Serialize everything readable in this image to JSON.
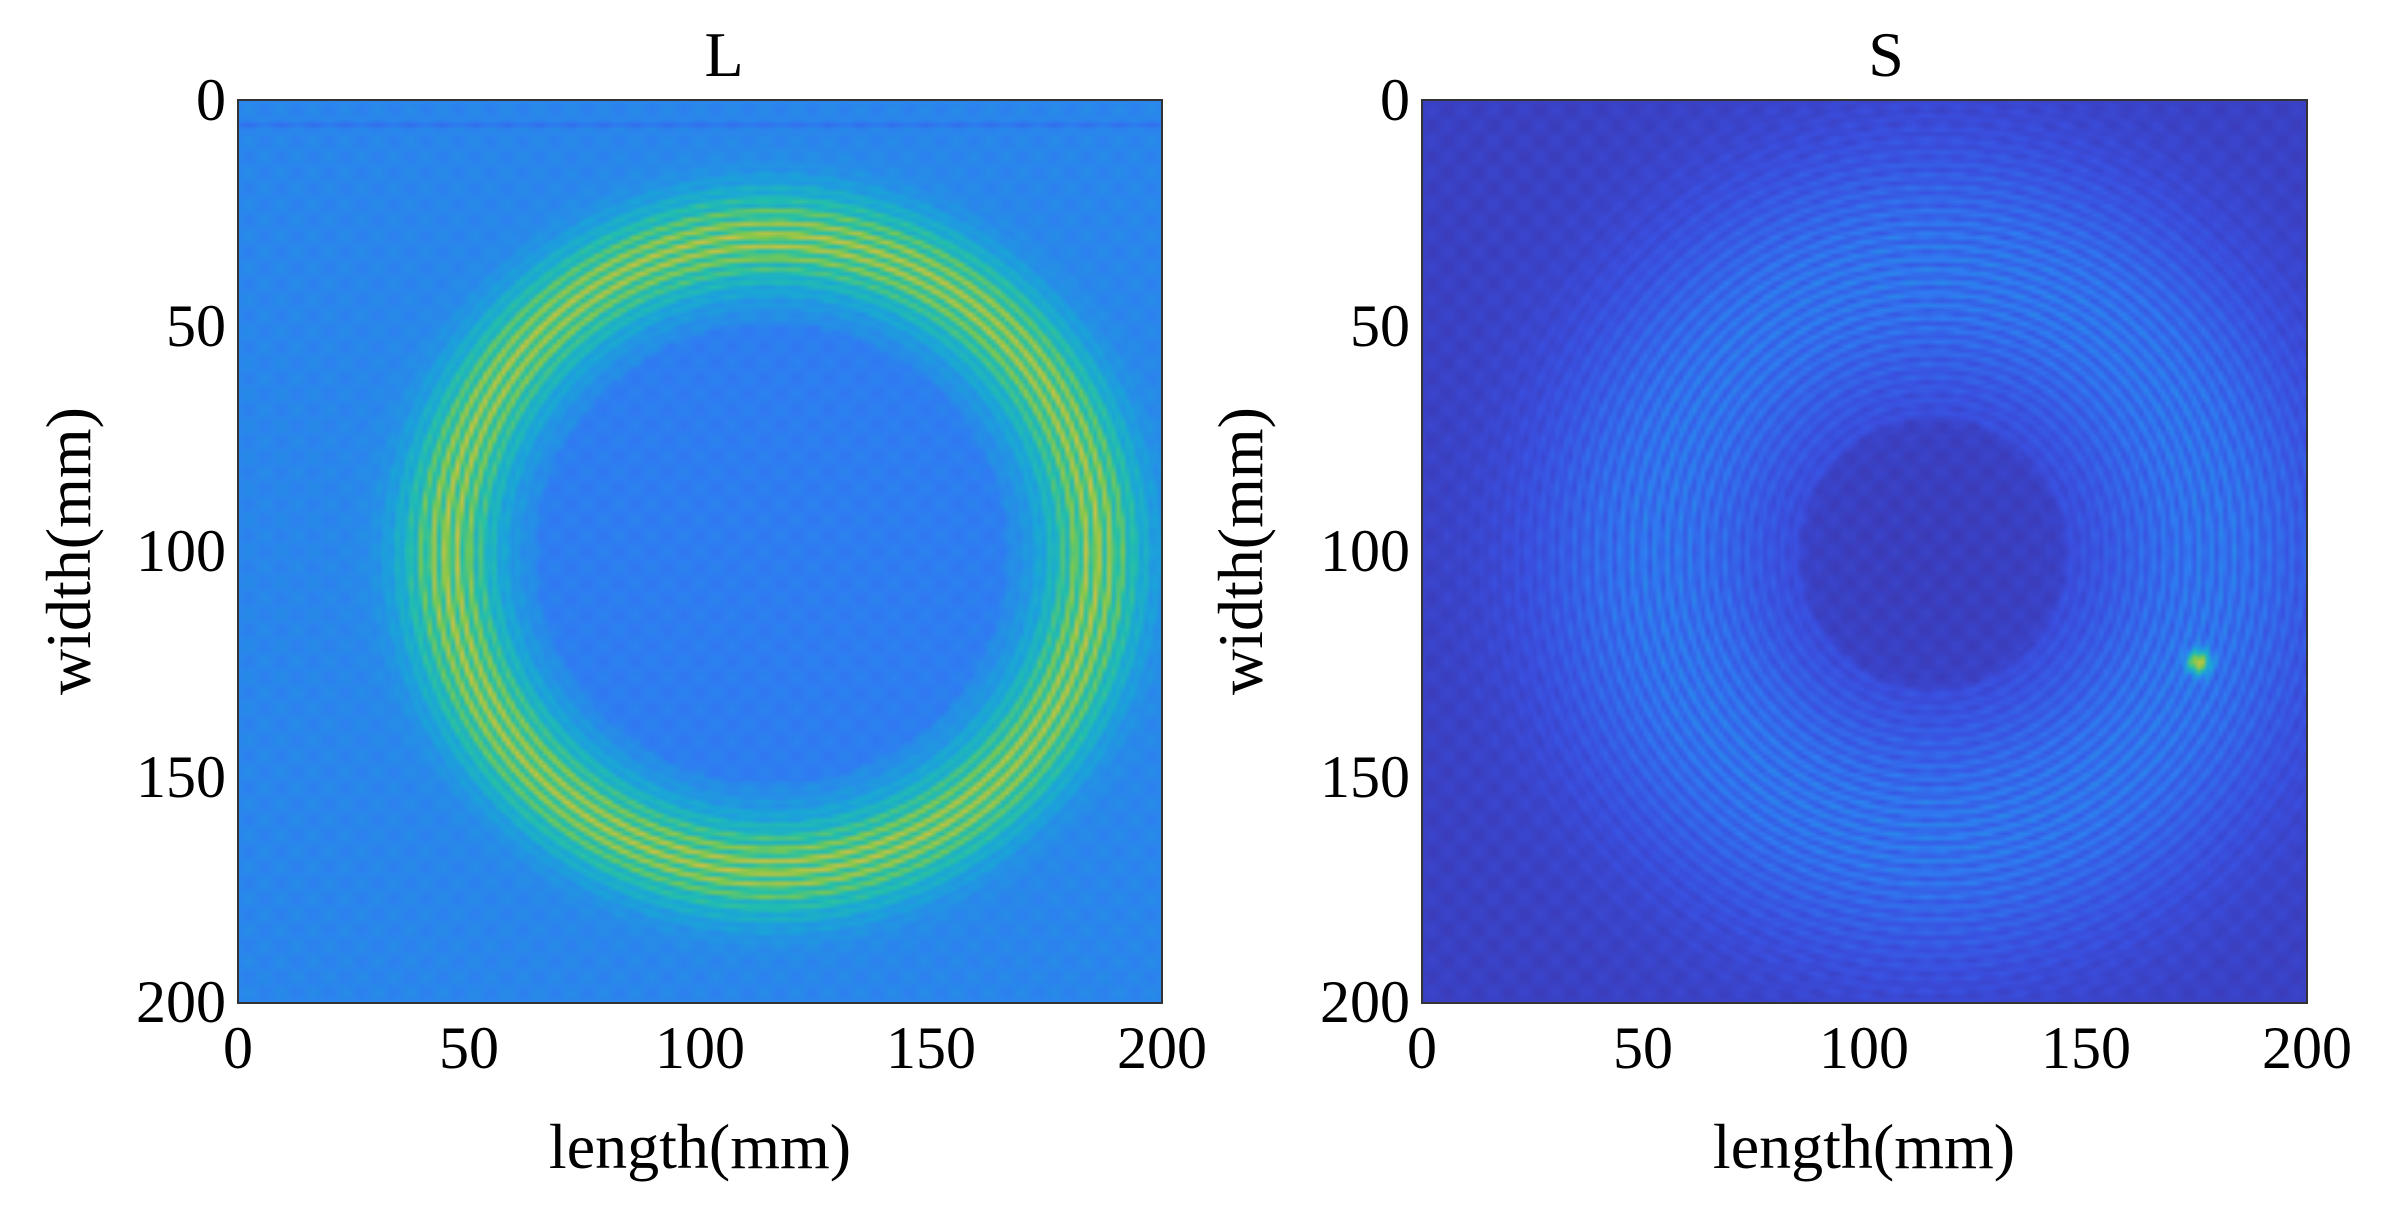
{
  "chart_data": [
    {
      "type": "heatmap",
      "title": "L",
      "xlabel": "length(mm)",
      "ylabel": "width(mm)",
      "xlim": [
        0,
        200
      ],
      "ylim": [
        0,
        200
      ],
      "y_reversed": true,
      "xticks": [
        0,
        50,
        100,
        150,
        200
      ],
      "yticks": [
        0,
        50,
        100,
        150,
        200
      ],
      "colormap": "parula",
      "colormap_stops": [
        "#3b2e9e",
        "#3a4fe0",
        "#2f7cf2",
        "#1aa6d8",
        "#23c0aa",
        "#7ac850",
        "#d1c23d",
        "#f2e22f"
      ],
      "features": {
        "ring_center": [
          115,
          100
        ],
        "ring_inner_radius": 60,
        "ring_outer_radius": 80,
        "ring_peak_level": 0.85,
        "background_level": 0.32,
        "center_level": 0.27
      }
    },
    {
      "type": "heatmap",
      "title": "S",
      "xlabel": "length(mm)",
      "ylabel": "width(mm)",
      "xlim": [
        0,
        200
      ],
      "ylim": [
        0,
        200
      ],
      "y_reversed": true,
      "xticks": [
        0,
        50,
        100,
        150,
        200
      ],
      "yticks": [
        0,
        50,
        100,
        150,
        200
      ],
      "colormap": "parula",
      "colormap_stops": [
        "#3b2e9e",
        "#3a4fe0",
        "#2f7cf2",
        "#1aa6d8",
        "#23c0aa",
        "#7ac850",
        "#d1c23d",
        "#f2e22f"
      ],
      "features": {
        "ring_center": [
          115,
          100
        ],
        "ring_inner_radius": 35,
        "ring_outer_radius": 90,
        "ring_peak_level": 0.32,
        "background_level": 0.08,
        "center_level": 0.06,
        "hotspot": [
          175,
          124
        ]
      }
    }
  ]
}
